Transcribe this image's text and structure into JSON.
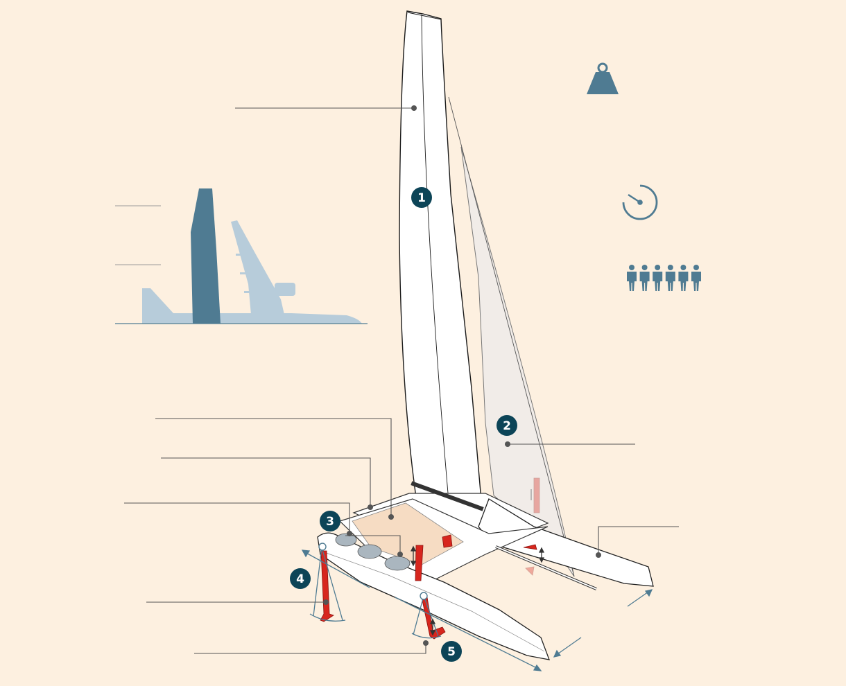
{
  "colors": {
    "background": "#fdf0e0",
    "accent_dark_teal": "#0c4457",
    "icon_teal": "#4f7b92",
    "silhouette_light": "#b7ccda",
    "leader_line": "#555555",
    "foil_red": "#d7261e",
    "hull_white": "#ffffff",
    "jib_fill": "#f1ece8",
    "deck_tan": "#f6dcc3"
  },
  "badges": [
    {
      "id": "wing-sail",
      "label": "1"
    },
    {
      "id": "jib",
      "label": "2"
    },
    {
      "id": "cockpit-pods",
      "label": "3"
    },
    {
      "id": "daggerboard-foil",
      "label": "4"
    },
    {
      "id": "rudder-foil",
      "label": "5"
    }
  ],
  "icons": {
    "weight": "weight-icon",
    "speed": "gauge-icon",
    "crew": "crew-icon",
    "crew_count": 6
  },
  "size_comparison": {
    "silhouettes": [
      "wing-sail-silhouette",
      "airliner-silhouette"
    ]
  }
}
